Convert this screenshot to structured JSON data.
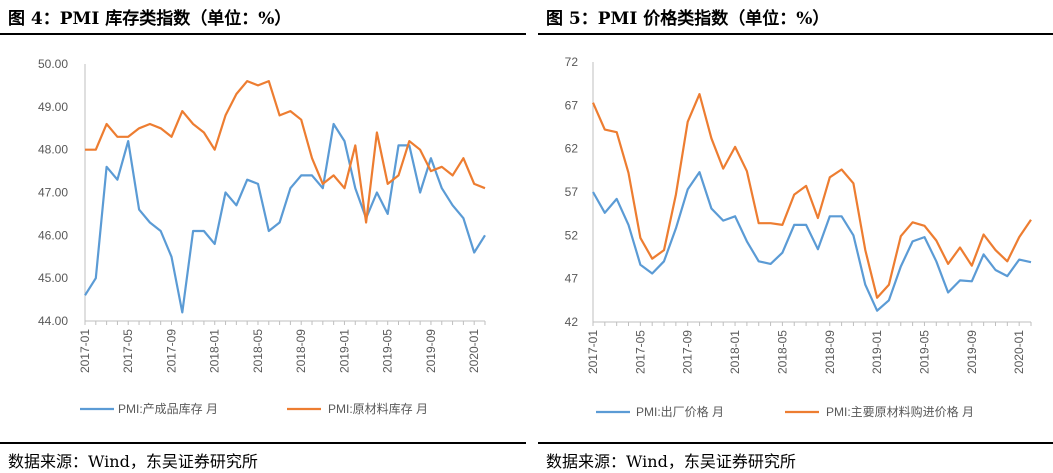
{
  "charts": [
    {
      "title": "图 4：PMI 库存类指数（单位：%）",
      "source": "数据来源：Wind，东吴证券研究所",
      "chart_data": {
        "type": "line",
        "x_ticks": [
          "2017-01",
          "2017-05",
          "2017-09",
          "2018-01",
          "2018-05",
          "2018-09",
          "2019-01",
          "2019-05",
          "2019-09",
          "2020-01"
        ],
        "ylim": [
          44,
          50
        ],
        "yticks": [
          "44.00",
          "45.00",
          "46.00",
          "47.00",
          "48.00",
          "49.00",
          "50.00"
        ],
        "legend_position": "bottom",
        "grid": false,
        "series": [
          {
            "name": "PMI:产成品库存 月",
            "color": "#5b9bd5",
            "values": [
              44.6,
              45.0,
              47.6,
              47.3,
              48.2,
              46.6,
              46.3,
              46.1,
              45.5,
              44.2,
              46.1,
              46.1,
              45.8,
              47.0,
              46.7,
              47.3,
              47.2,
              46.1,
              46.3,
              47.1,
              47.4,
              47.4,
              47.1,
              48.6,
              48.2,
              47.1,
              46.4,
              47.0,
              46.5,
              48.1,
              48.1,
              47.0,
              47.8,
              47.1,
              46.7,
              46.4,
              45.6,
              46.0
            ]
          },
          {
            "name": "PMI:原材料库存 月",
            "color": "#ed7d31",
            "values": [
              48.0,
              48.0,
              48.6,
              48.3,
              48.3,
              48.5,
              48.6,
              48.5,
              48.3,
              48.9,
              48.6,
              48.4,
              48.0,
              48.8,
              49.3,
              49.6,
              49.5,
              49.6,
              48.8,
              48.9,
              48.7,
              47.8,
              47.2,
              47.4,
              47.1,
              48.1,
              46.3,
              48.4,
              47.2,
              47.4,
              48.2,
              48.0,
              47.5,
              47.6,
              47.4,
              47.8,
              47.2,
              47.1
            ]
          }
        ]
      }
    },
    {
      "title": "图 5：PMI 价格类指数（单位：%）",
      "source": "数据来源：Wind，东吴证券研究所",
      "chart_data": {
        "type": "line",
        "x_ticks": [
          "2017-01",
          "2017-05",
          "2017-09",
          "2018-01",
          "2018-05",
          "2018-09",
          "2019-01",
          "2019-05",
          "2019-09",
          "2020-01"
        ],
        "ylim": [
          42,
          72
        ],
        "yticks": [
          "42",
          "47",
          "52",
          "57",
          "62",
          "67",
          "72"
        ],
        "legend_position": "bottom",
        "grid": false,
        "series": [
          {
            "name": "PMI:出厂价格 月",
            "color": "#5b9bd5",
            "values": [
              57.0,
              54.6,
              56.2,
              53.2,
              48.6,
              47.6,
              49.0,
              52.8,
              57.3,
              59.3,
              55.1,
              53.7,
              54.2,
              51.3,
              49.0,
              48.7,
              50.0,
              53.2,
              53.2,
              50.4,
              54.2,
              54.2,
              52.0,
              46.3,
              43.3,
              44.5,
              48.4,
              51.3,
              51.8,
              49.0,
              45.4,
              46.8,
              46.7,
              49.8,
              48.0,
              47.3,
              49.2,
              48.9
            ]
          },
          {
            "name": "PMI:主要原材料购进价格 月",
            "color": "#ed7d31",
            "values": [
              67.3,
              64.2,
              63.9,
              59.2,
              51.7,
              49.3,
              50.3,
              56.7,
              65.1,
              68.3,
              63.2,
              59.7,
              62.2,
              59.4,
              53.4,
              53.4,
              53.2,
              56.7,
              57.7,
              54.0,
              58.7,
              59.6,
              58.0,
              50.3,
              44.8,
              46.3,
              51.9,
              53.5,
              53.1,
              51.4,
              48.7,
              50.6,
              48.5,
              52.1,
              50.3,
              49.0,
              51.8,
              53.8
            ]
          }
        ]
      }
    }
  ]
}
